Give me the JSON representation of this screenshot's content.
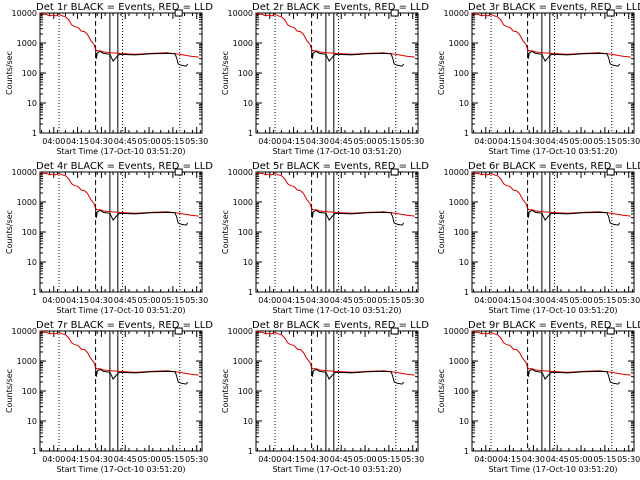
{
  "chart_data": {
    "type": "line",
    "layout": "3x3 grid",
    "ylabel": "Counts/sec",
    "xlabel": "Start Time (17-Oct-10 03:51:20)",
    "y_scale": "log",
    "ylim": [
      1,
      10000
    ],
    "y_ticks": [
      1,
      10,
      100,
      1000,
      10000
    ],
    "y_tick_labels": [
      "1",
      "10",
      "100",
      "1000",
      "10000"
    ],
    "xlim_minutes_after_start": [
      0,
      102
    ],
    "x_ticks_minutes_after_start": [
      8.67,
      23.67,
      38.67,
      53.67,
      68.67,
      83.67,
      98.67
    ],
    "x_tick_labels": [
      "04:00",
      "04:15",
      "04:30",
      "04:45",
      "05:00",
      "05:15",
      "05:30"
    ],
    "legend_title_suffix": "BLACK = Events, RED = LLD",
    "colors": {
      "events": "#000000",
      "lld": "#dd0000"
    },
    "markers": {
      "dotted_lines_min": [
        12,
        52,
        88
      ],
      "dashed_lines_min": [
        35
      ],
      "solid_lines_min": [
        44,
        49
      ],
      "box_at_top_min": 87
    },
    "panels": [
      {
        "title": "Det 1r"
      },
      {
        "title": "Det 2r"
      },
      {
        "title": "Det 3r"
      },
      {
        "title": "Det 4r"
      },
      {
        "title": "Det 5r"
      },
      {
        "title": "Det 6r"
      },
      {
        "title": "Det 7r"
      },
      {
        "title": "Det 8r"
      },
      {
        "title": "Det 9r"
      }
    ],
    "series": [
      {
        "name": "LLD",
        "x_min": [
          0,
          2,
          4,
          6,
          8,
          10,
          12,
          14,
          16,
          18,
          20,
          22,
          24,
          26,
          28,
          30,
          32,
          34,
          35,
          36,
          38,
          40,
          44,
          50,
          60,
          70,
          80,
          85,
          88,
          90,
          95,
          100
        ],
        "y": [
          10000,
          9000,
          9000,
          8000,
          8500,
          8000,
          9000,
          8000,
          7500,
          6000,
          4000,
          3500,
          3300,
          2500,
          2400,
          1900,
          1200,
          900,
          600,
          550,
          550,
          500,
          480,
          450,
          420,
          450,
          470,
          440,
          420,
          400,
          360,
          340
        ]
      },
      {
        "name": "Events",
        "x_min": [
          35,
          35.5,
          36,
          37,
          38,
          39,
          40,
          44,
          46,
          48,
          50,
          60,
          70,
          80,
          85,
          86,
          87,
          89,
          92,
          93
        ],
        "y": [
          600,
          300,
          450,
          500,
          520,
          480,
          450,
          420,
          250,
          330,
          420,
          400,
          440,
          450,
          440,
          320,
          200,
          180,
          170,
          200
        ]
      }
    ]
  }
}
